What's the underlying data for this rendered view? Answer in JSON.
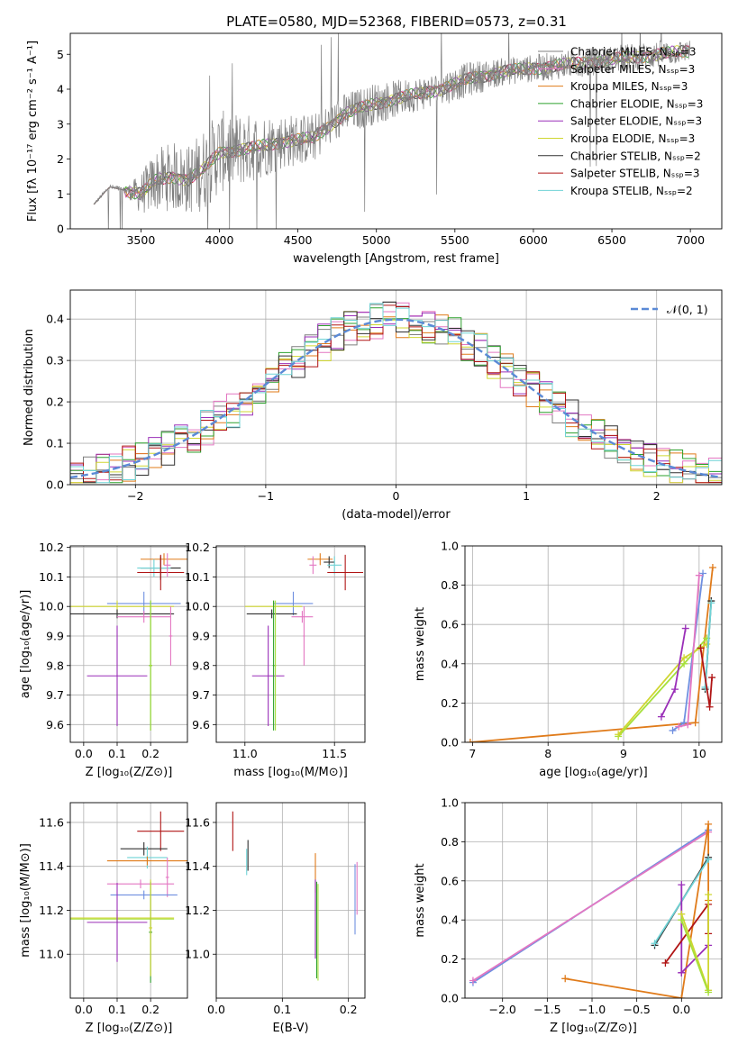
{
  "figure_title": "PLATE=0580, MJD=52368, FIBERID=0573, z=0.31",
  "colors": {
    "Chabrier MILES": "#7f7f7f",
    "Salpeter MILES": "#e377c2",
    "Kroupa MILES": "#e07b1a",
    "Chabrier ELODIE": "#2ca02c",
    "Salpeter ELODIE": "#9a2fb8",
    "Kroupa ELODIE": "#cfd631",
    "Chabrier STELIB": "#303030",
    "Salpeter STELIB": "#b01515",
    "Kroupa STELIB": "#6fd3d6",
    "extra_blue": "#6f8fe0",
    "extra_lime": "#a6e03b",
    "normal_curve": "#5b8ad6"
  },
  "chart_data": [
    {
      "id": "spectrum",
      "type": "line",
      "xlabel": "wavelength [Angstrom, rest frame]",
      "ylabel": "Flux [fλ 10⁻¹⁷ erg cm⁻² s⁻¹ A⁻¹]",
      "xlim": [
        3050,
        7200
      ],
      "ylim": [
        0,
        5.6
      ],
      "xticks": [
        3500,
        4000,
        4500,
        5000,
        5500,
        6000,
        6500,
        7000
      ],
      "yticks": [
        0,
        1,
        2,
        3,
        4,
        5
      ],
      "legend_position": "top-right",
      "legend": [
        {
          "name": "Chabrier MILES, Nₛₛₚ=3",
          "color": "#7f7f7f"
        },
        {
          "name": "Salpeter MILES, Nₛₛₚ=3",
          "color": "#e377c2"
        },
        {
          "name": "Kroupa MILES, Nₛₛₚ=3",
          "color": "#e07b1a"
        },
        {
          "name": "Chabrier ELODIE, Nₛₛₚ=3",
          "color": "#2ca02c"
        },
        {
          "name": "Salpeter ELODIE, Nₛₛₚ=3",
          "color": "#9a2fb8"
        },
        {
          "name": "Kroupa ELODIE, Nₛₛₚ=3",
          "color": "#cfd631"
        },
        {
          "name": "Chabrier STELIB, Nₛₛₚ=2",
          "color": "#303030"
        },
        {
          "name": "Salpeter STELIB, Nₛₛₚ=3",
          "color": "#b01515"
        },
        {
          "name": "Kroupa STELIB, Nₛₛₚ=2",
          "color": "#6fd3d6"
        }
      ],
      "data_envelope": {
        "x": [
          3200,
          3300,
          3400,
          3500,
          3600,
          3700,
          3800,
          3900,
          4000,
          4200,
          4400,
          4600,
          4800,
          5000,
          5200,
          5400,
          5600,
          5800,
          6000,
          6200,
          6400,
          6600,
          6800,
          7000
        ],
        "y": [
          0.7,
          1.2,
          1.1,
          1.0,
          1.4,
          1.5,
          1.4,
          1.7,
          2.2,
          2.3,
          2.5,
          2.6,
          3.3,
          3.6,
          3.8,
          4.0,
          4.3,
          4.5,
          4.6,
          4.7,
          4.8,
          4.9,
          5.0,
          5.1
        ],
        "noise_amplitude": [
          0.05,
          0.08,
          0.1,
          0.6,
          0.9,
          1.0,
          1.0,
          1.2,
          1.2,
          1.0,
          0.8,
          0.7,
          0.6,
          0.6,
          0.5,
          0.5,
          0.5,
          0.4,
          0.4,
          0.4,
          0.4,
          0.4,
          0.4,
          0.3
        ]
      }
    },
    {
      "id": "residuals",
      "type": "histogram",
      "xlabel": "(data-model)/error",
      "ylabel": "Normed distribution",
      "xlim": [
        -2.5,
        2.5
      ],
      "ylim": [
        0,
        0.47
      ],
      "xticks": [
        -2,
        -1,
        0,
        1,
        2
      ],
      "yticks": [
        0.0,
        0.1,
        0.2,
        0.3,
        0.4
      ],
      "bin_edges_start": -2.5,
      "bin_width": 0.1,
      "bins": 50,
      "legend": [
        {
          "name": "𝒩(0, 1)",
          "color": "#5b8ad6",
          "style": "dashed"
        }
      ],
      "legend_position": "top-right"
    },
    {
      "id": "age_vs_Z",
      "type": "errorbar",
      "xlabel": "Z [log₁₀(Z/Z⊙)]",
      "ylabel": "age  [log₁₀(age/yr)]",
      "xlim": [
        -0.04,
        0.31
      ],
      "ylim": [
        9.54,
        10.205
      ],
      "xticks": [
        0.0,
        0.1,
        0.2
      ],
      "yticks": [
        9.6,
        9.7,
        9.8,
        9.9,
        10.0,
        10.1,
        10.2
      ],
      "points": [
        {
          "x": 0.24,
          "y": 10.16,
          "xerr": 0.07,
          "yerr": 0.02,
          "color": "#e07b1a"
        },
        {
          "x": 0.23,
          "y": 10.13,
          "xerr": 0.06,
          "yerr": 0.04,
          "color": "#303030"
        },
        {
          "x": 0.21,
          "y": 10.13,
          "xerr": 0.05,
          "yerr": 0.03,
          "color": "#6fd3d6"
        },
        {
          "x": 0.23,
          "y": 10.115,
          "xerr": 0.07,
          "yerr": 0.06,
          "color": "#b01515"
        },
        {
          "x": 0.25,
          "y": 10.14,
          "xerr": 0.01,
          "yerr": 0.04,
          "color": "#e377c2"
        },
        {
          "x": 0.18,
          "y": 10.01,
          "xerr": 0.11,
          "yerr": 0.04,
          "color": "#6f8fe0"
        },
        {
          "x": 0.1,
          "y": 10.0,
          "xerr": 0.17,
          "yerr": 0.02,
          "color": "#cfd631"
        },
        {
          "x": 0.1,
          "y": 9.975,
          "xerr": 0.17,
          "yerr": 0.015,
          "color": "#303030"
        },
        {
          "x": 0.18,
          "y": 9.965,
          "xerr": 0.08,
          "yerr": 0.02,
          "color": "#e377c2"
        },
        {
          "x": 0.26,
          "y": 9.9,
          "xerr": 0.005,
          "yerr": 0.1,
          "color": "#e377c2"
        },
        {
          "x": 0.1,
          "y": 9.765,
          "xerr": 0.09,
          "yerr": 0.17,
          "color": "#9a2fb8"
        },
        {
          "x": 0.2,
          "y": 9.8,
          "xerr": 0.005,
          "yerr": 0.22,
          "color": "#2ca02c"
        },
        {
          "x": 0.2,
          "y": 9.8,
          "xerr": 0.005,
          "yerr": 0.22,
          "color": "#a6e03b"
        }
      ]
    },
    {
      "id": "age_vs_mass",
      "type": "errorbar",
      "xlabel": "mass [log₁₀(M/M⊙)]",
      "ylabel": "",
      "xlim": [
        10.84,
        11.67
      ],
      "ylim": [
        9.54,
        10.205
      ],
      "xticks": [
        11.0,
        11.5
      ],
      "yticks": [
        9.6,
        9.7,
        9.8,
        9.9,
        10.0,
        10.1,
        10.2
      ],
      "points": [
        {
          "x": 11.42,
          "y": 10.16,
          "xerr": 0.07,
          "yerr": 0.02,
          "color": "#e07b1a"
        },
        {
          "x": 11.47,
          "y": 10.15,
          "xerr": 0.03,
          "yerr": 0.02,
          "color": "#303030"
        },
        {
          "x": 11.5,
          "y": 10.14,
          "xerr": 0.04,
          "yerr": 0.03,
          "color": "#6fd3d6"
        },
        {
          "x": 11.56,
          "y": 10.115,
          "xerr": 0.1,
          "yerr": 0.06,
          "color": "#b01515"
        },
        {
          "x": 11.38,
          "y": 10.14,
          "xerr": 0.02,
          "yerr": 0.03,
          "color": "#e377c2"
        },
        {
          "x": 11.27,
          "y": 10.01,
          "xerr": 0.11,
          "yerr": 0.04,
          "color": "#6f8fe0"
        },
        {
          "x": 11.16,
          "y": 10.0,
          "xerr": 0.16,
          "yerr": 0.02,
          "color": "#cfd631"
        },
        {
          "x": 11.15,
          "y": 9.975,
          "xerr": 0.14,
          "yerr": 0.015,
          "color": "#303030"
        },
        {
          "x": 11.32,
          "y": 9.965,
          "xerr": 0.06,
          "yerr": 0.02,
          "color": "#e377c2"
        },
        {
          "x": 11.33,
          "y": 9.9,
          "xerr": 0.005,
          "yerr": 0.1,
          "color": "#e377c2"
        },
        {
          "x": 11.13,
          "y": 9.765,
          "xerr": 0.09,
          "yerr": 0.17,
          "color": "#9a2fb8"
        },
        {
          "x": 11.16,
          "y": 9.8,
          "xerr": 0.005,
          "yerr": 0.22,
          "color": "#2ca02c"
        },
        {
          "x": 11.17,
          "y": 9.8,
          "xerr": 0.005,
          "yerr": 0.22,
          "color": "#a6e03b"
        }
      ]
    },
    {
      "id": "mass_weight_vs_age",
      "type": "line",
      "xlabel": "age  [log₁₀(age/yr)]",
      "ylabel": "mass weight",
      "xlim": [
        6.9,
        10.3
      ],
      "ylim": [
        0,
        1.0
      ],
      "xticks": [
        7,
        8,
        9,
        10
      ],
      "yticks": [
        0.0,
        0.2,
        0.4,
        0.6,
        0.8,
        1.0
      ],
      "series": [
        {
          "color": "#e07b1a",
          "x": [
            6.97,
            9.95,
            10.18
          ],
          "y": [
            0.0,
            0.1,
            0.89
          ]
        },
        {
          "color": "#a6e03b",
          "x": [
            8.93,
            9.8,
            10.1
          ],
          "y": [
            0.03,
            0.4,
            0.53
          ]
        },
        {
          "color": "#cfd631",
          "x": [
            8.93,
            9.8,
            10.1
          ],
          "y": [
            0.04,
            0.43,
            0.5
          ]
        },
        {
          "color": "#9a2fb8",
          "x": [
            9.5,
            9.68,
            9.82
          ],
          "y": [
            0.13,
            0.27,
            0.58
          ]
        },
        {
          "color": "#6f8fe0",
          "x": [
            9.65,
            9.8,
            10.05
          ],
          "y": [
            0.06,
            0.1,
            0.86
          ]
        },
        {
          "color": "#e377c2",
          "x": [
            9.73,
            9.85,
            10.0
          ],
          "y": [
            0.08,
            0.09,
            0.85
          ]
        },
        {
          "color": "#303030",
          "x": [
            10.08,
            10.16
          ],
          "y": [
            0.27,
            0.72
          ]
        },
        {
          "color": "#6fd3d6",
          "x": [
            10.08,
            10.16
          ],
          "y": [
            0.28,
            0.71
          ]
        },
        {
          "color": "#b01515",
          "x": [
            10.02,
            10.14,
            10.17
          ],
          "y": [
            0.48,
            0.18,
            0.33
          ]
        }
      ]
    },
    {
      "id": "mass_vs_Z",
      "type": "errorbar",
      "xlabel": "Z [log₁₀(Z/Z⊙)]",
      "ylabel": "mass [log₁₀(M/M⊙)]",
      "xlim": [
        -0.04,
        0.31
      ],
      "ylim": [
        10.8,
        11.69
      ],
      "xticks": [
        0.0,
        0.1,
        0.2
      ],
      "yticks": [
        11.0,
        11.2,
        11.4,
        11.6
      ],
      "points": [
        {
          "x": 0.23,
          "y": 11.56,
          "xerr": 0.07,
          "yerr": 0.09,
          "color": "#b01515"
        },
        {
          "x": 0.18,
          "y": 11.48,
          "xerr": 0.07,
          "yerr": 0.03,
          "color": "#303030"
        },
        {
          "x": 0.19,
          "y": 11.44,
          "xerr": 0.06,
          "yerr": 0.05,
          "color": "#6fd3d6"
        },
        {
          "x": 0.19,
          "y": 11.425,
          "xerr": 0.12,
          "yerr": 0.02,
          "color": "#e07b1a"
        },
        {
          "x": 0.25,
          "y": 11.35,
          "xerr": 0.005,
          "yerr": 0.09,
          "color": "#e377c2"
        },
        {
          "x": 0.17,
          "y": 11.32,
          "xerr": 0.1,
          "yerr": 0.02,
          "color": "#e377c2"
        },
        {
          "x": 0.18,
          "y": 11.27,
          "xerr": 0.1,
          "yerr": 0.02,
          "color": "#6f8fe0"
        },
        {
          "x": 0.1,
          "y": 11.165,
          "xerr": 0.17,
          "yerr": 0.02,
          "color": "#cfd631"
        },
        {
          "x": 0.1,
          "y": 11.16,
          "xerr": 0.17,
          "yerr": 0.02,
          "color": "#a6e03b"
        },
        {
          "x": 0.1,
          "y": 11.145,
          "xerr": 0.09,
          "yerr": 0.18,
          "color": "#9a2fb8"
        },
        {
          "x": 0.2,
          "y": 11.1,
          "xerr": 0.005,
          "yerr": 0.23,
          "color": "#2ca02c"
        },
        {
          "x": 0.2,
          "y": 11.12,
          "xerr": 0.005,
          "yerr": 0.22,
          "color": "#cfd631"
        }
      ]
    },
    {
      "id": "mass_vs_EBV",
      "type": "errorbar",
      "xlabel": "E(B-V)",
      "ylabel": "",
      "xlim": [
        0.0,
        0.225
      ],
      "ylim": [
        10.8,
        11.69
      ],
      "xticks": [
        0.0,
        0.1,
        0.2
      ],
      "yticks": [
        11.0,
        11.2,
        11.4,
        11.6
      ],
      "points": [
        {
          "x": 0.025,
          "y": 11.56,
          "xerr": 0.0,
          "yerr": 0.09,
          "color": "#b01515"
        },
        {
          "x": 0.048,
          "y": 11.45,
          "xerr": 0.0,
          "yerr": 0.07,
          "color": "#303030"
        },
        {
          "x": 0.046,
          "y": 11.42,
          "xerr": 0.0,
          "yerr": 0.06,
          "color": "#6fd3d6"
        },
        {
          "x": 0.15,
          "y": 11.37,
          "xerr": 0.0,
          "yerr": 0.09,
          "color": "#e07b1a"
        },
        {
          "x": 0.15,
          "y": 11.16,
          "xerr": 0.0,
          "yerr": 0.18,
          "color": "#9a2fb8"
        },
        {
          "x": 0.152,
          "y": 11.11,
          "xerr": 0.0,
          "yerr": 0.22,
          "color": "#2ca02c"
        },
        {
          "x": 0.154,
          "y": 11.1,
          "xerr": 0.0,
          "yerr": 0.22,
          "color": "#a6e03b"
        },
        {
          "x": 0.21,
          "y": 11.25,
          "xerr": 0.0,
          "yerr": 0.16,
          "color": "#6f8fe0"
        },
        {
          "x": 0.213,
          "y": 11.3,
          "xerr": 0.0,
          "yerr": 0.12,
          "color": "#e377c2"
        }
      ]
    },
    {
      "id": "mass_weight_vs_Z",
      "type": "line",
      "xlabel": "Z [log₁₀(Z/Z⊙)]",
      "ylabel": "mass weight",
      "xlim": [
        -2.42,
        0.45
      ],
      "ylim": [
        0,
        1.0
      ],
      "xticks": [
        -2.0,
        -1.5,
        -1.0,
        -0.5,
        0.0
      ],
      "yticks": [
        0.0,
        0.2,
        0.4,
        0.6,
        0.8,
        1.0
      ],
      "series": [
        {
          "color": "#6f8fe0",
          "x": [
            -2.33,
            0.3
          ],
          "y": [
            0.08,
            0.86
          ]
        },
        {
          "color": "#e377c2",
          "x": [
            -2.33,
            0.3
          ],
          "y": [
            0.09,
            0.85
          ]
        },
        {
          "color": "#e07b1a",
          "x": [
            -1.3,
            0.0,
            0.3,
            0.3
          ],
          "y": [
            0.1,
            0.0,
            0.89,
            0.5
          ]
        },
        {
          "color": "#303030",
          "x": [
            -0.3,
            0.3
          ],
          "y": [
            0.27,
            0.72
          ]
        },
        {
          "color": "#6fd3d6",
          "x": [
            -0.3,
            0.3
          ],
          "y": [
            0.28,
            0.71
          ]
        },
        {
          "color": "#9a2fb8",
          "x": [
            0.0,
            0.3
          ],
          "y": [
            0.13,
            0.27
          ]
        },
        {
          "color": "#9a2fb8",
          "x": [
            0.0,
            0.0
          ],
          "y": [
            0.13,
            0.58
          ]
        },
        {
          "color": "#b01515",
          "x": [
            -0.18,
            0.3,
            0.3
          ],
          "y": [
            0.18,
            0.48,
            0.33
          ]
        },
        {
          "color": "#cfd631",
          "x": [
            0.0,
            0.3,
            0.3
          ],
          "y": [
            0.43,
            0.04,
            0.53
          ]
        },
        {
          "color": "#a6e03b",
          "x": [
            0.0,
            0.3
          ],
          "y": [
            0.4,
            0.03
          ]
        }
      ]
    }
  ]
}
